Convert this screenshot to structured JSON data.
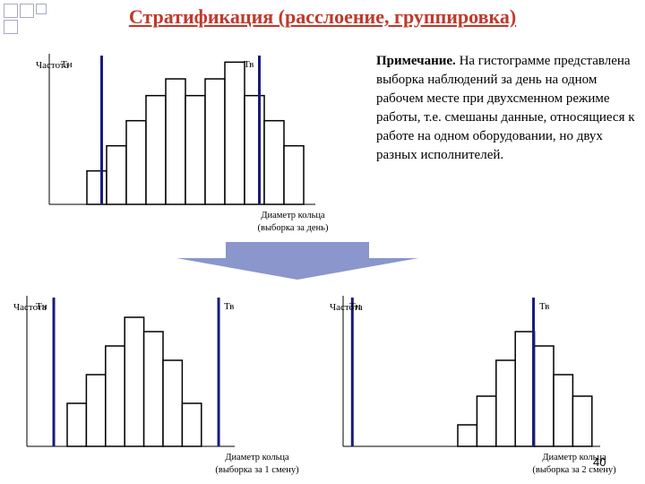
{
  "title": "Стратификация (расслоение, группировка)",
  "note": {
    "bold": "Примечание.",
    "text": " На гистограмме представлена выборка наблюдений за день на одном рабочем месте при двухсменном режиме работы, т.е. смешаны данные, относящиеся к работе на одном оборудовании, но двух разных исполнителей."
  },
  "page_number": "40",
  "colors": {
    "title": "#c0392b",
    "limit_line": "#1a1a7a",
    "arrow": "#8a96cc"
  },
  "charts": [
    {
      "y_label": "Частота",
      "lower_limit_label": "Тн",
      "upper_limit_label": "Тв",
      "x_caption_1": "Диаметр кольца",
      "x_caption_2": "(выборка за день)",
      "bars": [
        2,
        3.5,
        5,
        6.5,
        7.5,
        6.5,
        7.5,
        8.5,
        6.5,
        5,
        3.5
      ],
      "y_max": 9,
      "lower_limit_at": 0.75,
      "upper_limit_at": 8.75
    },
    {
      "y_label": "Частота",
      "lower_limit_label": "Тн",
      "upper_limit_label": "Тв",
      "x_caption_1": "Диаметр кольца",
      "x_caption_2": "(выборка за 1 смену)",
      "bars": [
        3,
        5,
        7,
        9,
        8,
        6,
        3
      ],
      "y_max": 10,
      "lower_limit_at": -0.7,
      "upper_limit_at": 7.9
    },
    {
      "y_label": "Частота",
      "lower_limit_label": "Тн",
      "upper_limit_label": "Тв",
      "x_caption_1": "Диаметр кольца",
      "x_caption_2": "(выборка за 2 смену)",
      "bars": [
        1.5,
        3.5,
        6,
        8,
        7,
        5,
        3.5
      ],
      "y_max": 10,
      "lower_limit_at": -5.5,
      "upper_limit_at": 3.95
    }
  ]
}
